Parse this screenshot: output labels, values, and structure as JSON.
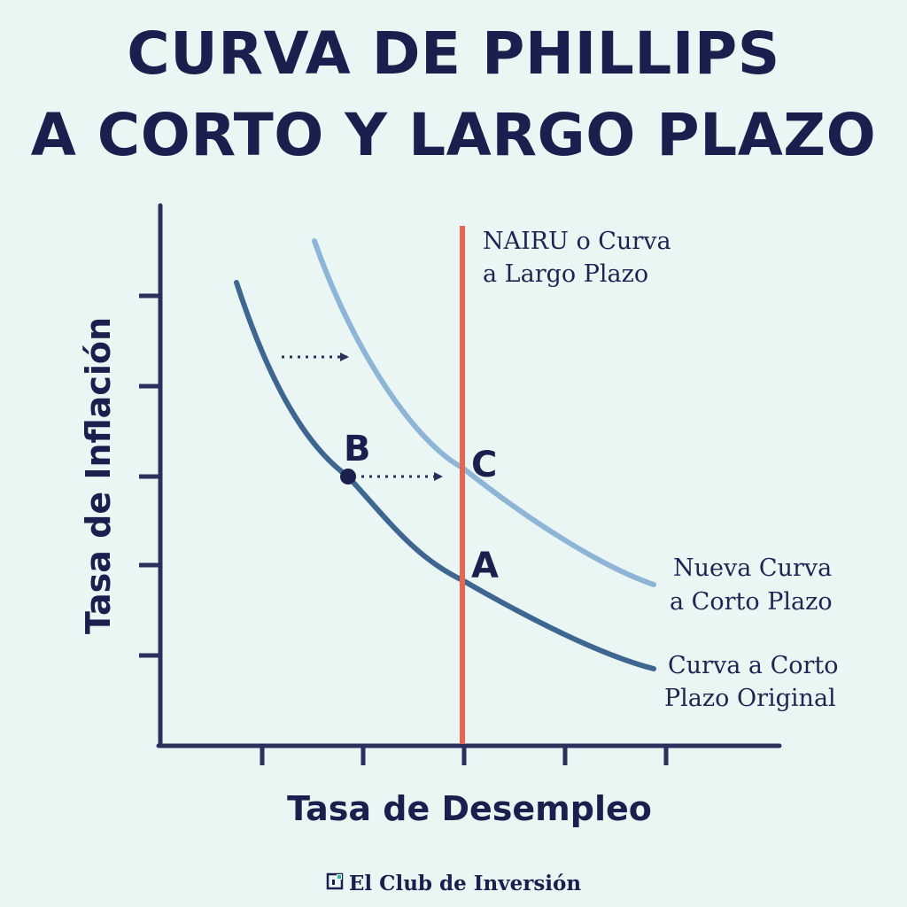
{
  "title": {
    "line1": "CURVA DE PHILLIPS",
    "line2": "A CORTO Y LARGO PLAZO"
  },
  "axes": {
    "y_label": "Tasa de Inflación",
    "x_label": "Tasa de Desempleo"
  },
  "curves": {
    "nairu": {
      "line1": "NAIRU o Curva",
      "line2": "a Largo Plazo",
      "color": "#e8654f"
    },
    "new_short_run": {
      "line1": "Nueva Curva",
      "line2": "a Corto Plazo",
      "color": "#8fb5d6"
    },
    "original_short_run": {
      "line1": "Curva a Corto",
      "line2": "Plazo Original",
      "color": "#3f6691"
    }
  },
  "points": {
    "a": "A",
    "b": "B",
    "c": "C"
  },
  "brand": {
    "name": "El Club de Inversión",
    "icon": "club-logo-icon"
  },
  "colors": {
    "background": "#eaf6f4",
    "text": "#1a1f4d",
    "axis": "#2b2f5c"
  }
}
